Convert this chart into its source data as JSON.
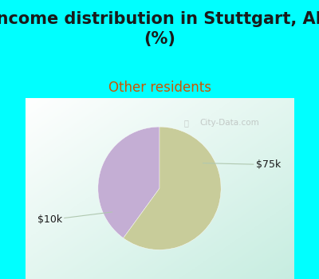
{
  "title": "Income distribution in Stuttgart, AR\n(%)",
  "subtitle": "Other residents",
  "slices": [
    {
      "label": "$75k",
      "value": 40,
      "color": "#c4aed4"
    },
    {
      "label": "$10k",
      "value": 60,
      "color": "#c8cc9a"
    }
  ],
  "title_fontsize": 15,
  "subtitle_fontsize": 12,
  "title_color": "#1a1a1a",
  "subtitle_color": "#cc5500",
  "bg_color": "#00ffff",
  "watermark": "City-Data.com",
  "startangle": 90
}
